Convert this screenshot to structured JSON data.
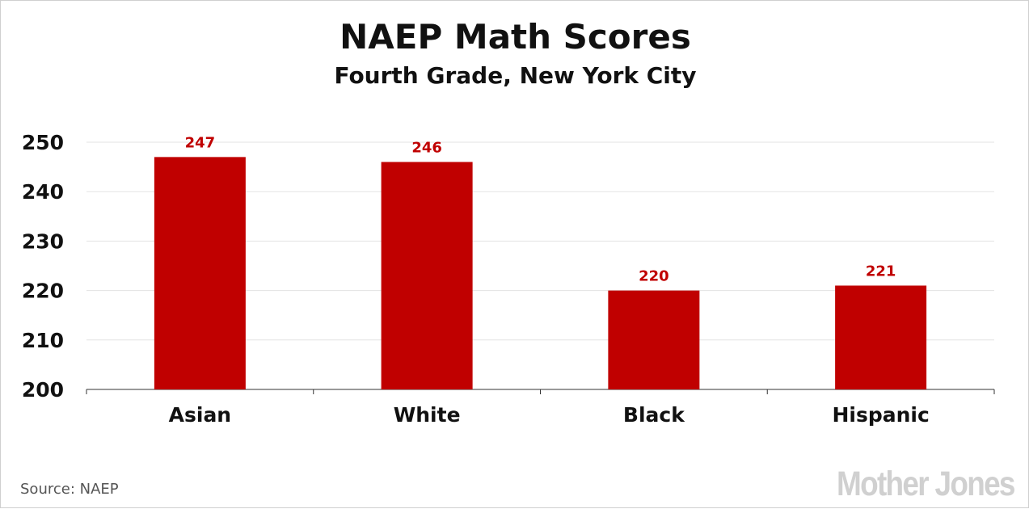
{
  "chart_data": {
    "type": "bar",
    "title": "NAEP Math Scores",
    "subtitle": "Fourth Grade, New York City",
    "categories": [
      "Asian",
      "White",
      "Black",
      "Hispanic"
    ],
    "values": [
      247,
      246,
      220,
      221
    ],
    "data_labels": [
      "247",
      "246",
      "220",
      "221"
    ],
    "ylim": [
      200,
      250
    ],
    "yticks": [
      200,
      210,
      220,
      230,
      240,
      250
    ],
    "ytick_labels": [
      "200",
      "210",
      "220",
      "230",
      "240",
      "250"
    ],
    "xlabel": "",
    "ylabel": "",
    "grid": true,
    "legend": "none",
    "bar_color": "#c00000",
    "label_color": "#c00000"
  },
  "source": "Source:  NAEP",
  "logo": "Mother Jones"
}
